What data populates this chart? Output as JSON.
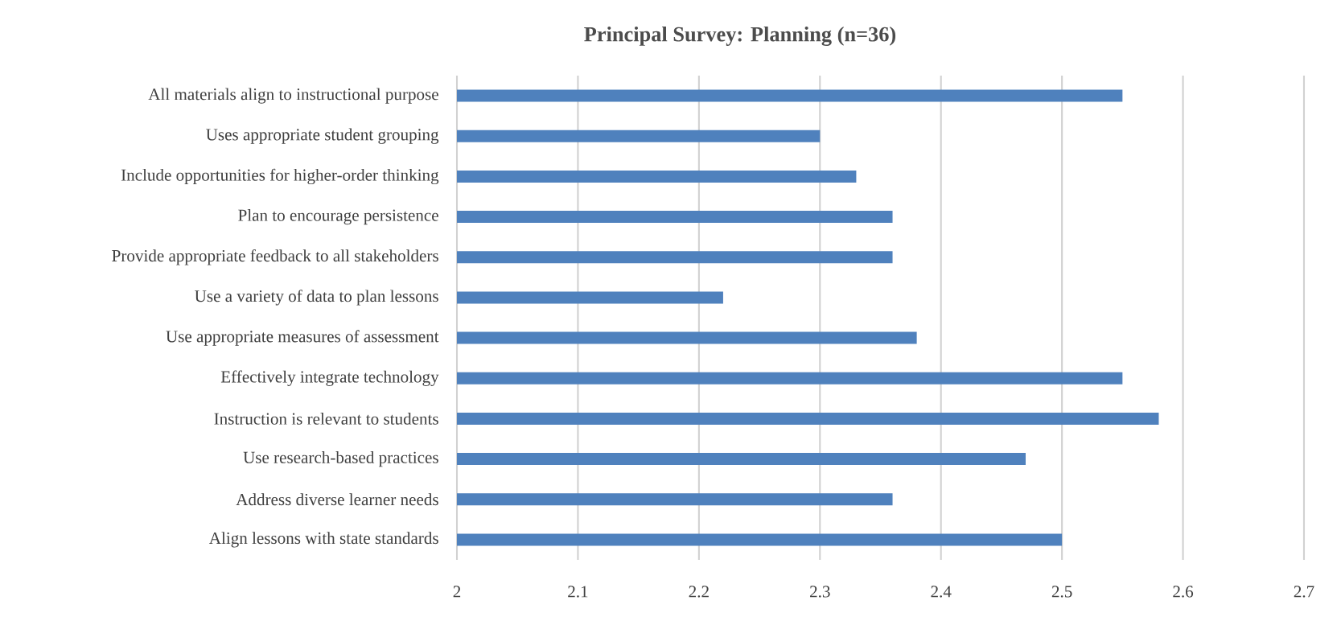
{
  "chart_data": {
    "type": "bar",
    "orientation": "horizontal",
    "title": "Principal Survey: Planning (n=36)",
    "categories": [
      "All materials align to instructional  purpose",
      "Uses appropriate student grouping",
      "Include opportunities for higher-order thinking",
      "Plan to encourage persistence",
      "Provide appropriate feedback to all stakeholders",
      "Use a variety of data to plan lessons",
      "Use appropriate measures of assessment",
      "Effectively integrate technology",
      "Instruction is relevant to students",
      "Use research-based practices",
      "Address diverse learner needs",
      "Align lessons with state standards"
    ],
    "values": [
      2.55,
      2.3,
      2.33,
      2.36,
      2.36,
      2.22,
      2.38,
      2.55,
      2.58,
      2.47,
      2.36,
      2.5
    ],
    "color": "#4f81bd",
    "xlim": [
      2,
      2.7
    ],
    "xticks": [
      2,
      2.1,
      2.2,
      2.3,
      2.4,
      2.5,
      2.6,
      2.7
    ],
    "grid": "x"
  }
}
